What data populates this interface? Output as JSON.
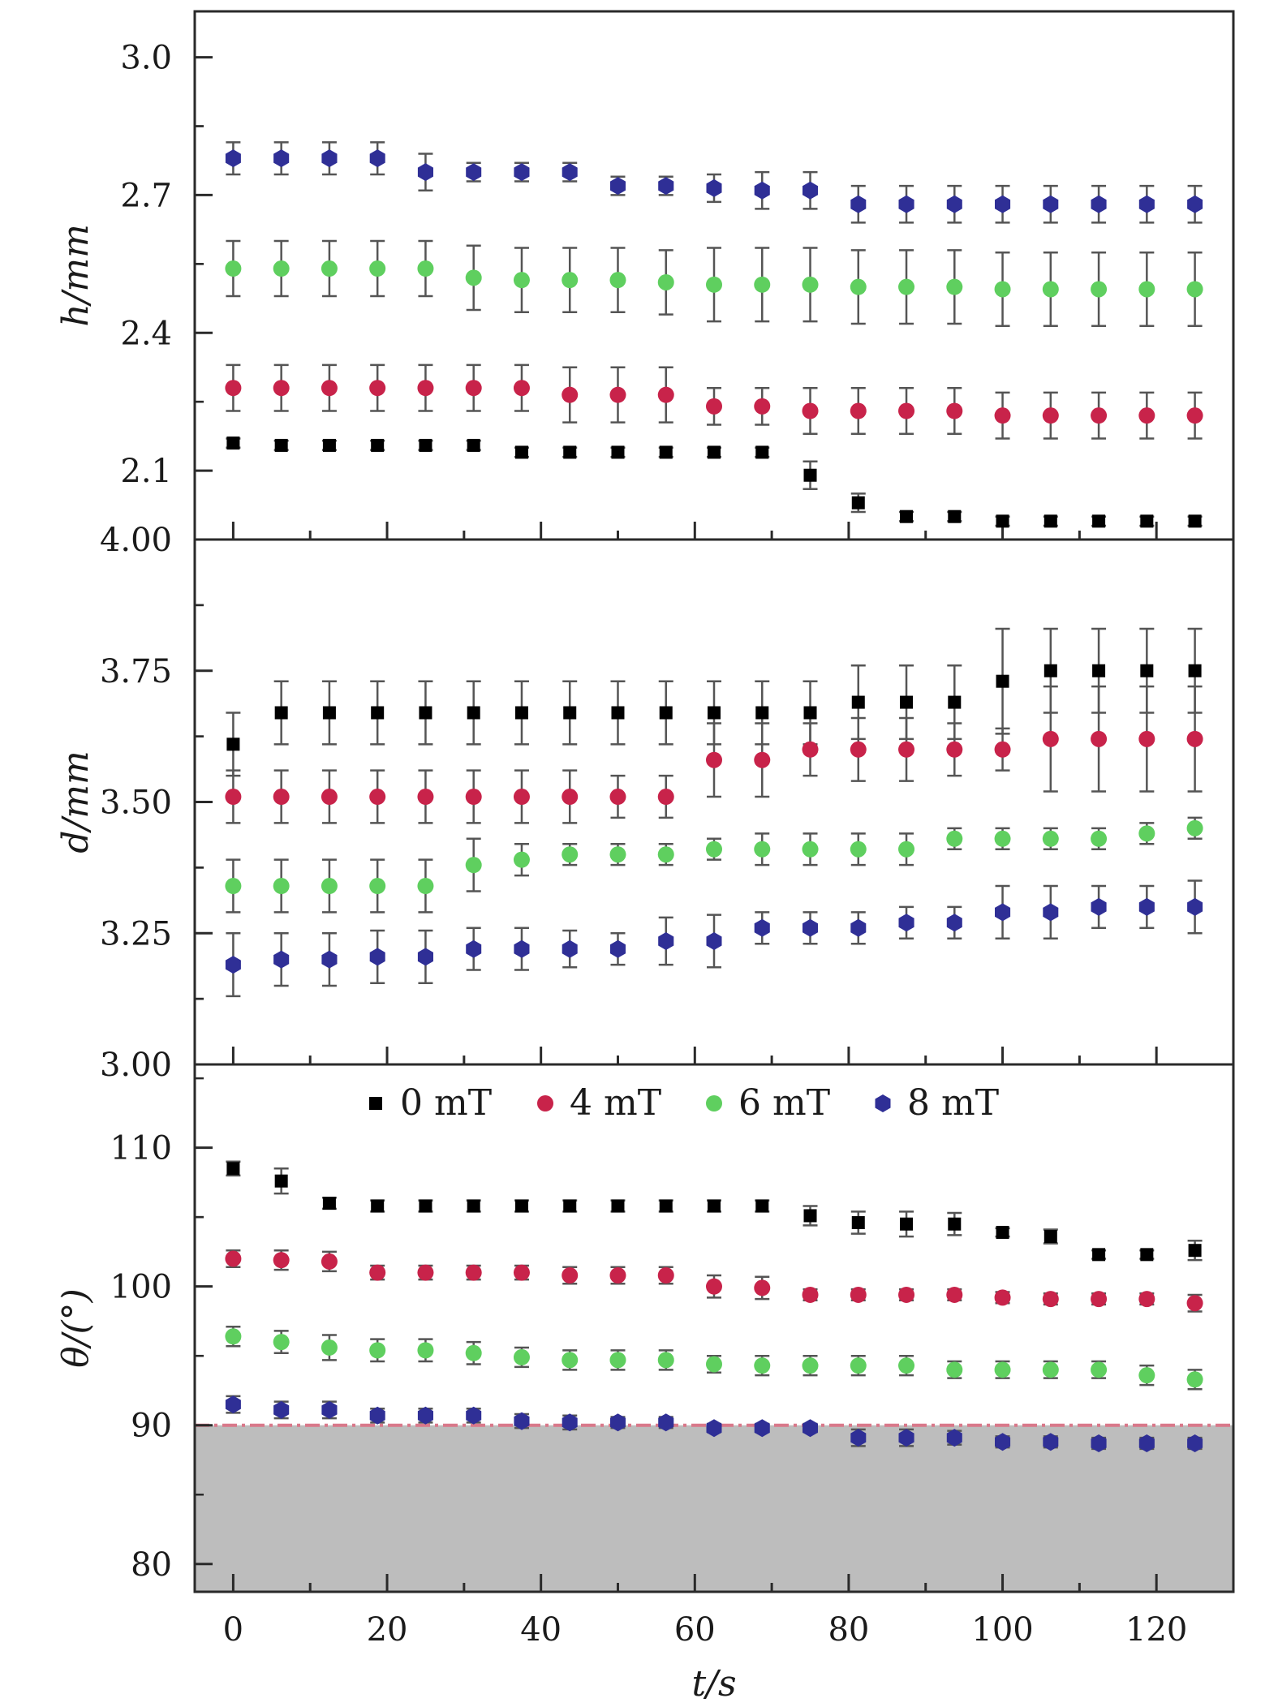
{
  "chart_data": [
    {
      "type": "scatter",
      "panel": "top",
      "title": "",
      "xlabel": "",
      "ylabel": "h/mm",
      "ylim": [
        1.95,
        3.1
      ],
      "yticks": [
        2.1,
        2.4,
        2.7,
        3.0
      ],
      "ytick_labels": [
        "2.1",
        "2.4",
        "2.7",
        "3.0"
      ],
      "grid": false,
      "x": [
        0,
        6.25,
        12.5,
        18.75,
        25,
        31.25,
        37.5,
        43.75,
        50,
        56.25,
        62.5,
        68.75,
        75,
        81.25,
        87.5,
        93.75,
        100,
        106.25,
        112.5,
        118.75,
        125
      ],
      "series": [
        {
          "name": "0 mT",
          "color": "#000000",
          "marker": "square",
          "values": [
            2.16,
            2.155,
            2.155,
            2.155,
            2.155,
            2.155,
            2.14,
            2.14,
            2.14,
            2.14,
            2.14,
            2.14,
            2.09,
            2.03,
            2.0,
            2.0,
            1.99,
            1.99,
            1.99,
            1.99,
            1.99
          ],
          "errors": [
            0.01,
            0.01,
            0.01,
            0.01,
            0.01,
            0.01,
            0.01,
            0.01,
            0.01,
            0.01,
            0.01,
            0.01,
            0.03,
            0.02,
            0.01,
            0.01,
            0.01,
            0.01,
            0.01,
            0.01,
            0.01
          ]
        },
        {
          "name": "4 mT",
          "color": "#c8234a",
          "marker": "circle",
          "values": [
            2.28,
            2.28,
            2.28,
            2.28,
            2.28,
            2.28,
            2.28,
            2.265,
            2.265,
            2.265,
            2.24,
            2.24,
            2.23,
            2.23,
            2.23,
            2.23,
            2.22,
            2.22,
            2.22,
            2.22,
            2.22
          ],
          "errors": [
            0.05,
            0.05,
            0.05,
            0.05,
            0.05,
            0.05,
            0.05,
            0.06,
            0.06,
            0.06,
            0.04,
            0.04,
            0.05,
            0.05,
            0.05,
            0.05,
            0.05,
            0.05,
            0.05,
            0.05,
            0.05
          ]
        },
        {
          "name": "6 mT",
          "color": "#5fcf5f",
          "marker": "circle",
          "values": [
            2.54,
            2.54,
            2.54,
            2.54,
            2.54,
            2.52,
            2.515,
            2.515,
            2.515,
            2.51,
            2.505,
            2.505,
            2.505,
            2.5,
            2.5,
            2.5,
            2.495,
            2.495,
            2.495,
            2.495,
            2.495
          ],
          "errors": [
            0.06,
            0.06,
            0.06,
            0.06,
            0.06,
            0.07,
            0.07,
            0.07,
            0.07,
            0.07,
            0.08,
            0.08,
            0.08,
            0.08,
            0.08,
            0.08,
            0.08,
            0.08,
            0.08,
            0.08,
            0.08
          ]
        },
        {
          "name": "8 mT",
          "color": "#2f2f96",
          "marker": "hexagon",
          "values": [
            2.78,
            2.78,
            2.78,
            2.78,
            2.75,
            2.75,
            2.75,
            2.75,
            2.72,
            2.72,
            2.715,
            2.71,
            2.71,
            2.68,
            2.68,
            2.68,
            2.68,
            2.68,
            2.68,
            2.68,
            2.68
          ],
          "errors": [
            0.035,
            0.035,
            0.035,
            0.035,
            0.04,
            0.02,
            0.02,
            0.02,
            0.02,
            0.02,
            0.03,
            0.04,
            0.04,
            0.04,
            0.04,
            0.04,
            0.04,
            0.04,
            0.04,
            0.04,
            0.04
          ]
        }
      ]
    },
    {
      "type": "scatter",
      "panel": "middle",
      "title": "",
      "xlabel": "",
      "ylabel": "d/mm",
      "ylim": [
        3.0,
        4.0
      ],
      "yticks": [
        3.0,
        3.25,
        3.5,
        3.75,
        4.0
      ],
      "ytick_labels": [
        "3.00",
        "3.25",
        "3.50",
        "3.75",
        "4.00"
      ],
      "grid": false,
      "x": [
        0,
        6.25,
        12.5,
        18.75,
        25,
        31.25,
        37.5,
        43.75,
        50,
        56.25,
        62.5,
        68.75,
        75,
        81.25,
        87.5,
        93.75,
        100,
        106.25,
        112.5,
        118.75,
        125
      ],
      "series": [
        {
          "name": "0 mT",
          "color": "#000000",
          "marker": "square",
          "values": [
            3.61,
            3.67,
            3.67,
            3.67,
            3.67,
            3.67,
            3.67,
            3.67,
            3.67,
            3.67,
            3.67,
            3.67,
            3.67,
            3.69,
            3.69,
            3.69,
            3.73,
            3.75,
            3.75,
            3.75,
            3.75
          ],
          "errors": [
            0.06,
            0.06,
            0.06,
            0.06,
            0.06,
            0.06,
            0.06,
            0.06,
            0.06,
            0.06,
            0.06,
            0.06,
            0.06,
            0.07,
            0.07,
            0.07,
            0.1,
            0.08,
            0.08,
            0.08,
            0.08
          ]
        },
        {
          "name": "4 mT",
          "color": "#c8234a",
          "marker": "circle",
          "values": [
            3.51,
            3.51,
            3.51,
            3.51,
            3.51,
            3.51,
            3.51,
            3.51,
            3.51,
            3.51,
            3.58,
            3.58,
            3.6,
            3.6,
            3.6,
            3.6,
            3.6,
            3.62,
            3.62,
            3.62,
            3.62
          ],
          "errors": [
            0.05,
            0.05,
            0.05,
            0.05,
            0.05,
            0.05,
            0.05,
            0.05,
            0.04,
            0.04,
            0.07,
            0.07,
            0.05,
            0.06,
            0.06,
            0.05,
            0.04,
            0.1,
            0.1,
            0.1,
            0.1
          ]
        },
        {
          "name": "6 mT",
          "color": "#5fcf5f",
          "marker": "circle",
          "values": [
            3.34,
            3.34,
            3.34,
            3.34,
            3.34,
            3.38,
            3.39,
            3.4,
            3.4,
            3.4,
            3.41,
            3.41,
            3.41,
            3.41,
            3.41,
            3.43,
            3.43,
            3.43,
            3.43,
            3.44,
            3.45
          ],
          "errors": [
            0.05,
            0.05,
            0.05,
            0.05,
            0.05,
            0.05,
            0.03,
            0.02,
            0.02,
            0.02,
            0.02,
            0.03,
            0.03,
            0.03,
            0.03,
            0.02,
            0.02,
            0.02,
            0.02,
            0.02,
            0.02
          ]
        },
        {
          "name": "8 mT",
          "color": "#2f2f96",
          "marker": "hexagon",
          "values": [
            3.19,
            3.2,
            3.2,
            3.205,
            3.205,
            3.22,
            3.22,
            3.22,
            3.22,
            3.235,
            3.235,
            3.26,
            3.26,
            3.26,
            3.27,
            3.27,
            3.29,
            3.29,
            3.3,
            3.3,
            3.3
          ],
          "errors": [
            0.06,
            0.05,
            0.05,
            0.05,
            0.05,
            0.04,
            0.04,
            0.035,
            0.03,
            0.045,
            0.05,
            0.03,
            0.03,
            0.03,
            0.03,
            0.03,
            0.05,
            0.05,
            0.04,
            0.04,
            0.05
          ]
        }
      ]
    },
    {
      "type": "scatter",
      "panel": "bottom",
      "title": "",
      "xlabel": "t/s",
      "ylabel": "θ/(°)",
      "xlim": [
        -5,
        130
      ],
      "xticks": [
        0,
        20,
        40,
        60,
        80,
        100,
        120
      ],
      "xtick_labels": [
        "0",
        "20",
        "40",
        "60",
        "80",
        "100",
        "120"
      ],
      "ylim": [
        78,
        116
      ],
      "yticks": [
        80,
        90,
        100,
        110
      ],
      "ytick_labels": [
        "80",
        "90",
        "100",
        "110"
      ],
      "grid": false,
      "shaded_region": {
        "from": 78,
        "to": 90,
        "color": "#bdbdbd"
      },
      "reference_line": {
        "y": 90,
        "style": "dash-dot"
      },
      "legend": {
        "placement": "top-center",
        "entries": [
          "0 mT",
          "4 mT",
          "6 mT",
          "8 mT"
        ]
      },
      "x": [
        0,
        6.25,
        12.5,
        18.75,
        25,
        31.25,
        37.5,
        43.75,
        50,
        56.25,
        62.5,
        68.75,
        75,
        81.25,
        87.5,
        93.75,
        100,
        106.25,
        112.5,
        118.75,
        125
      ],
      "series": [
        {
          "name": "0 mT",
          "color": "#000000",
          "marker": "square",
          "values": [
            108.5,
            107.6,
            106,
            105.8,
            105.8,
            105.8,
            105.8,
            105.8,
            105.8,
            105.8,
            105.8,
            105.8,
            105.1,
            104.6,
            104.5,
            104.5,
            103.9,
            103.6,
            102.3,
            102.3,
            102.6
          ],
          "errors": [
            0.5,
            0.9,
            0.4,
            0.4,
            0.4,
            0.4,
            0.4,
            0.4,
            0.4,
            0.4,
            0.4,
            0.4,
            0.7,
            0.8,
            0.9,
            0.8,
            0.3,
            0.5,
            0.3,
            0.3,
            0.7
          ]
        },
        {
          "name": "4 mT",
          "color": "#c8234a",
          "marker": "circle",
          "values": [
            102,
            101.9,
            101.8,
            101,
            101,
            101,
            101,
            100.8,
            100.8,
            100.8,
            100,
            99.9,
            99.4,
            99.4,
            99.4,
            99.4,
            99.2,
            99.1,
            99.1,
            99.1,
            98.8
          ],
          "errors": [
            0.6,
            0.7,
            0.7,
            0.5,
            0.5,
            0.5,
            0.5,
            0.6,
            0.6,
            0.6,
            0.8,
            0.8,
            0.4,
            0.4,
            0.4,
            0.4,
            0.4,
            0.4,
            0.4,
            0.4,
            0.6
          ]
        },
        {
          "name": "6 mT",
          "color": "#5fcf5f",
          "marker": "circle",
          "values": [
            96.4,
            96,
            95.6,
            95.4,
            95.4,
            95.2,
            94.9,
            94.7,
            94.7,
            94.7,
            94.4,
            94.3,
            94.3,
            94.3,
            94.3,
            94,
            94,
            94,
            94,
            93.6,
            93.3
          ],
          "errors": [
            0.7,
            0.8,
            0.9,
            0.8,
            0.8,
            0.8,
            0.7,
            0.7,
            0.7,
            0.7,
            0.6,
            0.7,
            0.7,
            0.7,
            0.7,
            0.6,
            0.6,
            0.6,
            0.6,
            0.7,
            0.7
          ]
        },
        {
          "name": "8 mT",
          "color": "#2f2f96",
          "marker": "hexagon",
          "values": [
            91.5,
            91.1,
            91.1,
            90.7,
            90.7,
            90.7,
            90.3,
            90.2,
            90.2,
            90.2,
            89.8,
            89.8,
            89.8,
            89.1,
            89.1,
            89.1,
            88.8,
            88.8,
            88.7,
            88.7,
            88.7
          ],
          "errors": [
            0.6,
            0.6,
            0.6,
            0.5,
            0.5,
            0.5,
            0.5,
            0.5,
            0.4,
            0.4,
            0.3,
            0.3,
            0.3,
            0.6,
            0.6,
            0.5,
            0.4,
            0.4,
            0.4,
            0.4,
            0.4
          ]
        }
      ]
    }
  ]
}
